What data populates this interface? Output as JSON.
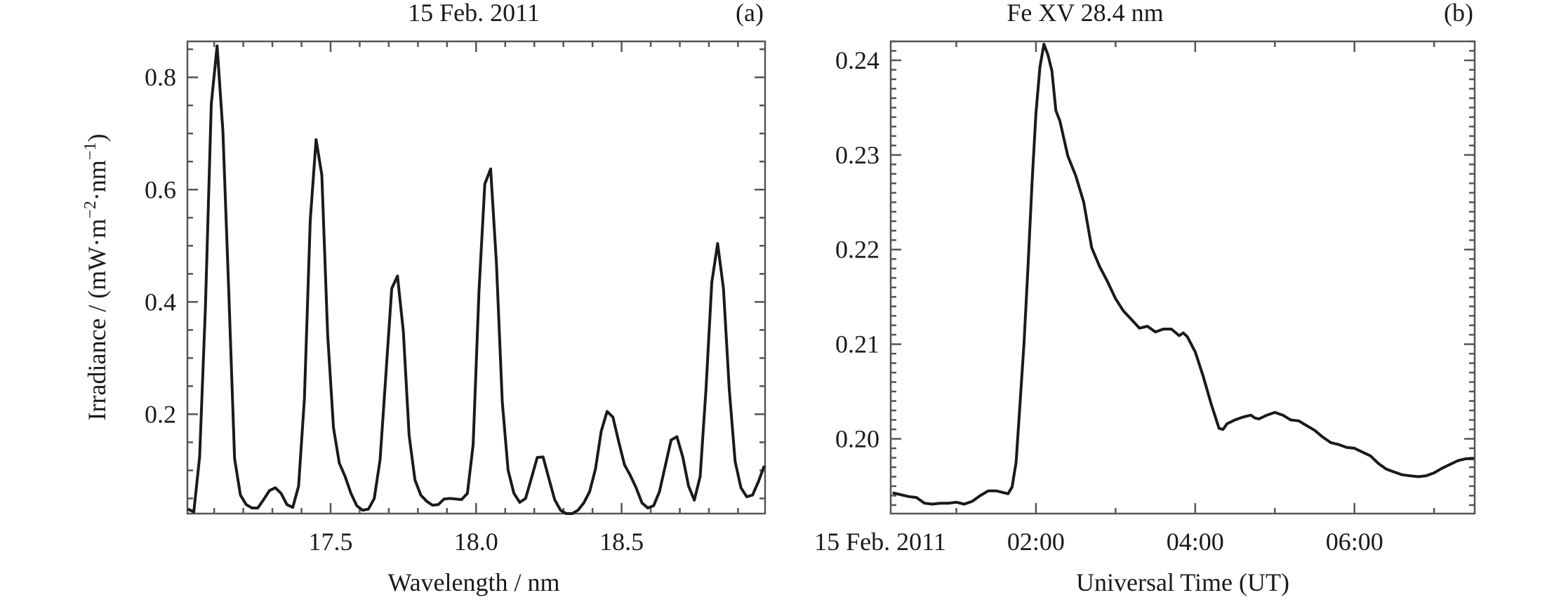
{
  "chart_data": [
    {
      "type": "line",
      "panel_tag": "(a)",
      "title": "15 Feb. 2011",
      "xlabel": "Wavelength / nm",
      "ylabel_parts": [
        "Irradiance / (mW·m",
        "−2",
        "·nm",
        "−1",
        ")"
      ],
      "xlim": [
        17.008,
        18.993
      ],
      "ylim": [
        0.023,
        0.864
      ],
      "xticks": [
        17.5,
        18.0,
        18.5
      ],
      "xtick_labels": [
        "17.5",
        "18.0",
        "18.5"
      ],
      "x_minor_step": 0.1,
      "yticks": [
        0.2,
        0.4,
        0.6,
        0.8
      ],
      "ytick_labels": [
        "0.2",
        "0.4",
        "0.6",
        "0.8"
      ],
      "y_minor_step": 0.05,
      "grid": false,
      "x_start": 17.01,
      "x_step": 0.02,
      "values": [
        0.031,
        0.026,
        0.124,
        0.392,
        0.752,
        0.856,
        0.703,
        0.419,
        0.121,
        0.056,
        0.039,
        0.033,
        0.033,
        0.048,
        0.064,
        0.069,
        0.059,
        0.039,
        0.034,
        0.072,
        0.228,
        0.545,
        0.689,
        0.626,
        0.342,
        0.176,
        0.113,
        0.089,
        0.059,
        0.037,
        0.029,
        0.031,
        0.05,
        0.119,
        0.271,
        0.424,
        0.446,
        0.348,
        0.162,
        0.083,
        0.056,
        0.045,
        0.038,
        0.039,
        0.049,
        0.05,
        0.049,
        0.048,
        0.059,
        0.146,
        0.419,
        0.61,
        0.637,
        0.468,
        0.222,
        0.1,
        0.059,
        0.043,
        0.05,
        0.086,
        0.123,
        0.124,
        0.086,
        0.048,
        0.029,
        0.023,
        0.023,
        0.029,
        0.042,
        0.062,
        0.102,
        0.17,
        0.205,
        0.195,
        0.151,
        0.11,
        0.091,
        0.069,
        0.042,
        0.033,
        0.037,
        0.062,
        0.108,
        0.154,
        0.16,
        0.124,
        0.072,
        0.047,
        0.089,
        0.244,
        0.435,
        0.504,
        0.424,
        0.244,
        0.116,
        0.069,
        0.053,
        0.056,
        0.08,
        0.108
      ]
    },
    {
      "type": "line",
      "panel_tag": "(b)",
      "title": "Fe XV 28.4 nm",
      "xlabel": "Universal Time (UT)",
      "x_units": "hours UT",
      "xlim": [
        0.176,
        7.51
      ],
      "ylim": [
        0.1921,
        0.242
      ],
      "xticks": [
        2,
        4,
        6
      ],
      "xtick_labels": [
        "02:00",
        "04:00",
        "06:00"
      ],
      "date_label": "15 Feb. 2011",
      "x_minor_step": 1,
      "yticks": [
        0.2,
        0.21,
        0.22,
        0.23,
        0.24
      ],
      "ytick_labels": [
        "0.20",
        "0.21",
        "0.22",
        "0.23",
        "0.24"
      ],
      "y_minor_step": 0.001,
      "grid": false,
      "x": [
        0.2,
        0.3,
        0.4,
        0.5,
        0.6,
        0.7,
        0.8,
        0.9,
        1.0,
        1.1,
        1.2,
        1.3,
        1.4,
        1.5,
        1.6,
        1.65,
        1.7,
        1.75,
        1.8,
        1.85,
        1.9,
        1.95,
        2.0,
        2.05,
        2.1,
        2.15,
        2.2,
        2.25,
        2.3,
        2.4,
        2.5,
        2.6,
        2.7,
        2.8,
        2.9,
        3.0,
        3.1,
        3.2,
        3.3,
        3.4,
        3.5,
        3.6,
        3.7,
        3.8,
        3.85,
        3.9,
        4.0,
        4.1,
        4.2,
        4.3,
        4.35,
        4.4,
        4.5,
        4.6,
        4.7,
        4.75,
        4.8,
        4.9,
        5.0,
        5.1,
        5.2,
        5.3,
        5.4,
        5.5,
        5.6,
        5.7,
        5.8,
        5.9,
        6.0,
        6.1,
        6.2,
        6.3,
        6.4,
        6.5,
        6.6,
        6.7,
        6.8,
        6.9,
        7.0,
        7.1,
        7.2,
        7.3,
        7.4,
        7.5
      ],
      "values": [
        0.1943,
        0.1941,
        0.1939,
        0.1938,
        0.1932,
        0.1931,
        0.1932,
        0.1932,
        0.1933,
        0.1931,
        0.1934,
        0.194,
        0.1945,
        0.1945,
        0.1943,
        0.1942,
        0.1949,
        0.1975,
        0.2037,
        0.2101,
        0.2182,
        0.227,
        0.2344,
        0.2393,
        0.2417,
        0.2406,
        0.2389,
        0.2347,
        0.2336,
        0.2299,
        0.2278,
        0.225,
        0.2202,
        0.2182,
        0.2166,
        0.2148,
        0.2135,
        0.2126,
        0.2117,
        0.2119,
        0.2113,
        0.2116,
        0.2116,
        0.2109,
        0.2112,
        0.2108,
        0.2092,
        0.2066,
        0.2037,
        0.2011,
        0.201,
        0.2016,
        0.202,
        0.2023,
        0.2025,
        0.2022,
        0.2021,
        0.2025,
        0.2028,
        0.2025,
        0.202,
        0.2019,
        0.2014,
        0.2009,
        0.2002,
        0.1996,
        0.1994,
        0.1991,
        0.199,
        0.1986,
        0.1982,
        0.1974,
        0.1968,
        0.1965,
        0.1962,
        0.1961,
        0.196,
        0.1961,
        0.1964,
        0.1969,
        0.1973,
        0.1977,
        0.1979,
        0.1979
      ]
    }
  ]
}
